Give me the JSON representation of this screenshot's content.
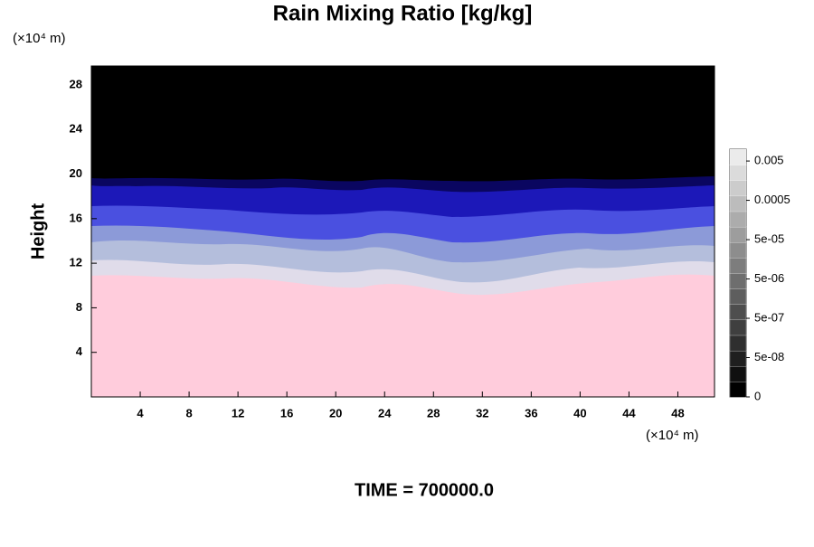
{
  "chart_data": {
    "type": "contour",
    "title": "Rain Mixing Ratio [kg/kg]",
    "y_unit": "(×10⁴ m)",
    "x_unit": "(×10⁴ m)",
    "ylabel": "Height",
    "footer": "TIME = 700000.0",
    "xlim": [
      0,
      51
    ],
    "xticks": [
      4,
      8,
      12,
      16,
      20,
      24,
      28,
      32,
      36,
      40,
      44,
      48
    ],
    "ylim": [
      0,
      29.7
    ],
    "yticks": [
      4,
      8,
      12,
      16,
      20,
      24,
      28
    ],
    "colorbar": {
      "log": true,
      "lim": [
        5e-09,
        0.01
      ],
      "ticks": [
        {
          "value": 0,
          "label": "0"
        },
        {
          "value": 5e-08,
          "label": "5e-08"
        },
        {
          "value": 5e-07,
          "label": "5e-07"
        },
        {
          "value": 5e-06,
          "label": "5e-06"
        },
        {
          "value": 5e-05,
          "label": "5e-05"
        },
        0.0005,
        0.005
      ]
    }
  }
}
